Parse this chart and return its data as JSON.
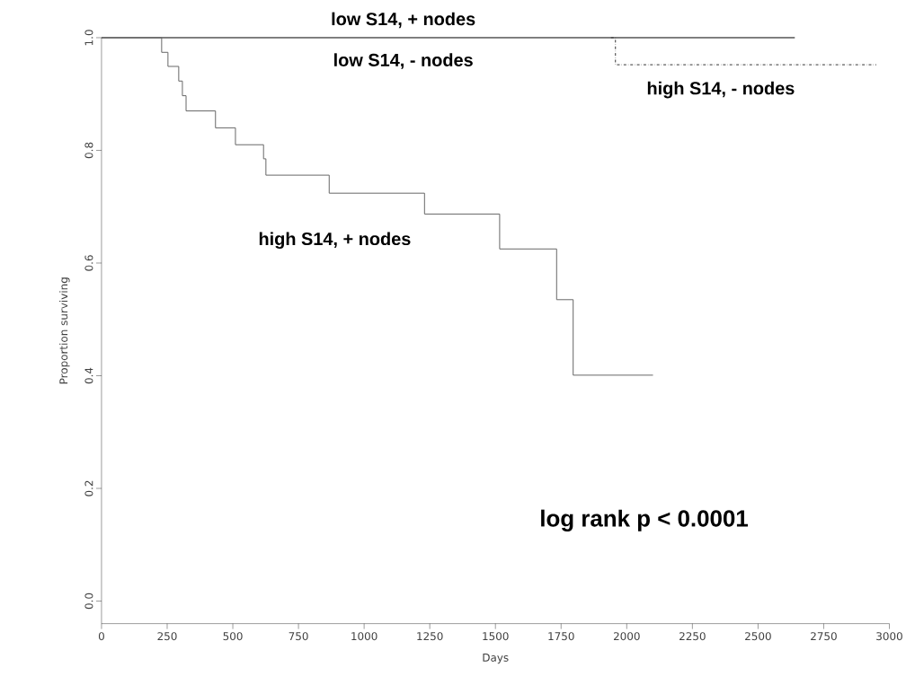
{
  "chart_data": {
    "type": "step",
    "xlabel": "Days",
    "ylabel": "Proportion surviving",
    "xlim": [
      0,
      3000
    ],
    "xticks": [
      0,
      250,
      500,
      750,
      1000,
      1250,
      1500,
      1750,
      2000,
      2250,
      2500,
      2750,
      3000
    ],
    "ylim": [
      -0.04,
      1.0
    ],
    "yticks": [
      {
        "value": 0,
        "label": "0.0"
      },
      {
        "value": 0.2,
        "label": "0.2"
      },
      {
        "value": 0.4,
        "label": "0.4"
      },
      {
        "value": 0.6,
        "label": "0.6"
      },
      {
        "value": 0.8,
        "label": "0.8"
      },
      {
        "value": 1.0,
        "label": "1.0"
      }
    ],
    "grid": false,
    "marker": "none",
    "series": [
      {
        "color": "#000000",
        "line_style": "solid",
        "x": [
          0,
          2640
        ],
        "values": [
          1.0,
          1.0
        ]
      },
      {
        "color": "#333333",
        "line_style": "dashdotted",
        "x": [
          1940,
          1957,
          2950
        ],
        "values": [
          1.0,
          0.952,
          0.952
        ]
      },
      {
        "color": "#666666",
        "line_style": "solid",
        "x": [
          0,
          229,
          253,
          294,
          308,
          322,
          434,
          510,
          617,
          626,
          867,
          1230,
          1516,
          1733,
          1796,
          2100
        ],
        "values": [
          1.0,
          0.974,
          0.949,
          0.923,
          0.897,
          0.87,
          0.84,
          0.81,
          0.785,
          0.756,
          0.724,
          0.687,
          0.625,
          0.535,
          0.401,
          0.401
        ]
      }
    ],
    "annotations": [
      "low S14, + nodes",
      "low S14, - nodes",
      "high S14, - nodes",
      "high S14, + nodes",
      "log rank p < 0.0001"
    ]
  }
}
